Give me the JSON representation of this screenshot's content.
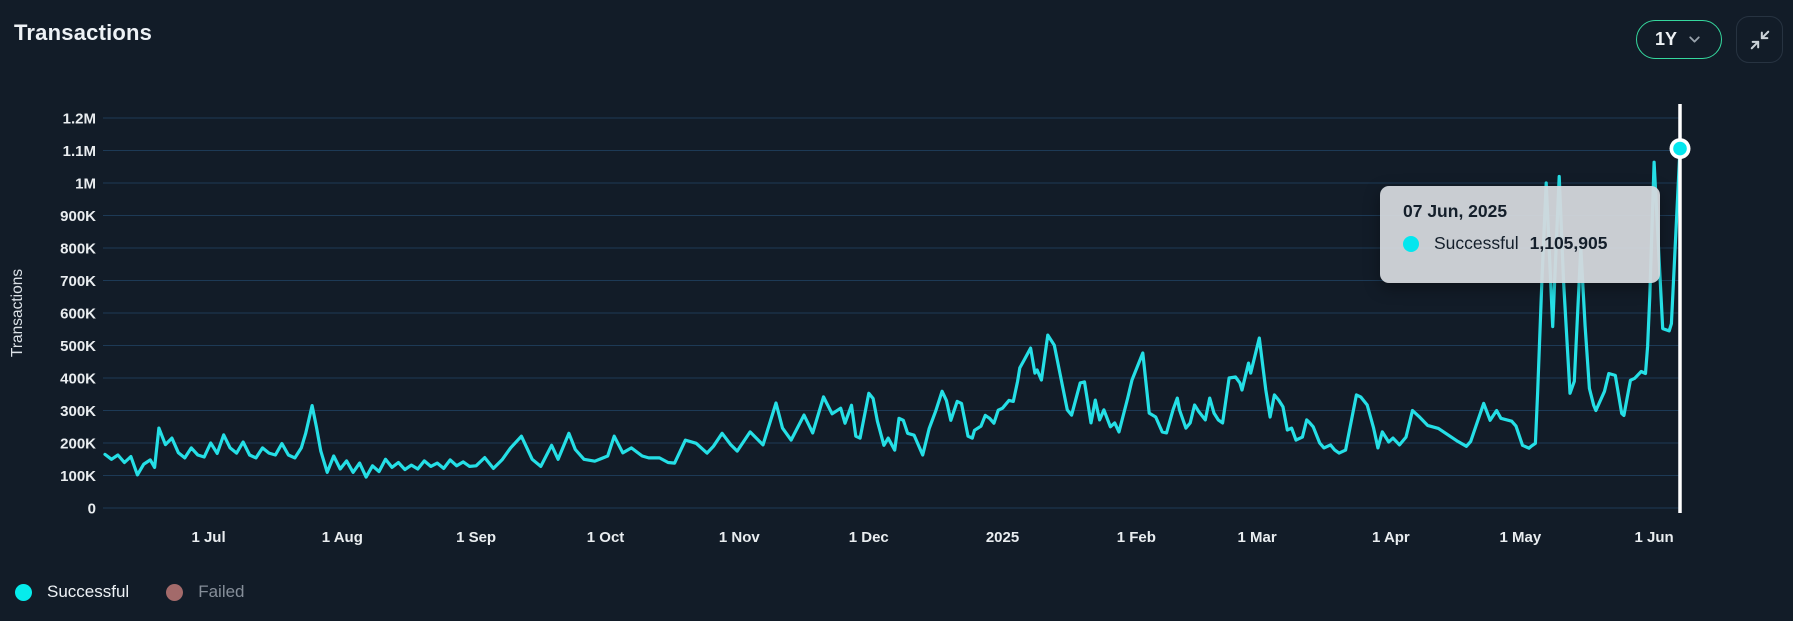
{
  "header": {
    "title": "Transactions",
    "range_selector": {
      "value": "1Y",
      "icon": "chevron-down-icon"
    },
    "collapse_button": {
      "icon": "collapse-arrows-icon"
    }
  },
  "tooltip": {
    "date": "07 Jun, 2025",
    "series": "Successful",
    "value": "1,105,905",
    "dot_color": "#04e6ee"
  },
  "legend": {
    "items": [
      {
        "label": "Successful",
        "color": "#06ecec",
        "active": true
      },
      {
        "label": "Failed",
        "color": "#a36a6a",
        "active": false
      }
    ]
  },
  "colors": {
    "background": "#121c28",
    "gridline": "#1d3a56",
    "axis_text": "#e9edf0",
    "line": "#25dfe6",
    "crosshair": "#ffffff",
    "accent_green": "#35d89e",
    "tooltip_bg": "#d5d9dd"
  },
  "chart_data": {
    "type": "line",
    "title": "Transactions",
    "ylabel": "Transactions",
    "xlabel": "",
    "grid": true,
    "legend_position": "bottom-left",
    "x_range": [
      "07 Jun 2024",
      "07 Jun 2025"
    ],
    "x_days_total": 365,
    "ylim": [
      0,
      1200000
    ],
    "y_ticks": [
      {
        "label": "0",
        "value": 0
      },
      {
        "label": "100K",
        "value": 100000
      },
      {
        "label": "200K",
        "value": 200000
      },
      {
        "label": "300K",
        "value": 300000
      },
      {
        "label": "400K",
        "value": 400000
      },
      {
        "label": "500K",
        "value": 500000
      },
      {
        "label": "600K",
        "value": 600000
      },
      {
        "label": "700K",
        "value": 700000
      },
      {
        "label": "800K",
        "value": 800000
      },
      {
        "label": "900K",
        "value": 900000
      },
      {
        "label": "1M",
        "value": 1000000
      },
      {
        "label": "1.1M",
        "value": 1100000
      },
      {
        "label": "1.2M",
        "value": 1200000
      }
    ],
    "x_ticks": [
      {
        "label": "1 Jul",
        "day": 24
      },
      {
        "label": "1 Aug",
        "day": 55
      },
      {
        "label": "1 Sep",
        "day": 86
      },
      {
        "label": "1 Oct",
        "day": 116
      },
      {
        "label": "1 Nov",
        "day": 147
      },
      {
        "label": "1 Dec",
        "day": 177
      },
      {
        "label": "2025",
        "day": 208
      },
      {
        "label": "1 Feb",
        "day": 239
      },
      {
        "label": "1 Mar",
        "day": 267
      },
      {
        "label": "1 Apr",
        "day": 298
      },
      {
        "label": "1 May",
        "day": 328
      },
      {
        "label": "1 Jun",
        "day": 359
      }
    ],
    "highlight": {
      "day": 365,
      "value": 1105905,
      "date": "07 Jun, 2025",
      "series": "Successful"
    },
    "series": [
      {
        "name": "Successful",
        "color": "#25dfe6",
        "visible": true,
        "points": [
          [
            0,
            165000
          ],
          [
            1.5,
            150000
          ],
          [
            3,
            163000
          ],
          [
            4.5,
            140000
          ],
          [
            6,
            158000
          ],
          [
            7.5,
            102000
          ],
          [
            9,
            135000
          ],
          [
            10.5,
            148000
          ],
          [
            11.5,
            125000
          ],
          [
            12.5,
            246000
          ],
          [
            14,
            195000
          ],
          [
            15.5,
            215000
          ],
          [
            17,
            170000
          ],
          [
            18.5,
            154000
          ],
          [
            20,
            185000
          ],
          [
            21.5,
            163000
          ],
          [
            23,
            157000
          ],
          [
            24.5,
            200000
          ],
          [
            26,
            168000
          ],
          [
            27.5,
            225000
          ],
          [
            29,
            185000
          ],
          [
            30.5,
            169000
          ],
          [
            32,
            203000
          ],
          [
            33.5,
            163000
          ],
          [
            35,
            154000
          ],
          [
            36.5,
            185000
          ],
          [
            38,
            169000
          ],
          [
            39.5,
            163000
          ],
          [
            41,
            198000
          ],
          [
            42.5,
            163000
          ],
          [
            44,
            154000
          ],
          [
            45.5,
            185000
          ],
          [
            46.5,
            230000
          ],
          [
            48,
            315000
          ],
          [
            49,
            250000
          ],
          [
            50,
            175000
          ],
          [
            51.5,
            110000
          ],
          [
            53,
            160000
          ],
          [
            54.5,
            120000
          ],
          [
            56,
            145000
          ],
          [
            57.5,
            110000
          ],
          [
            59,
            138000
          ],
          [
            60.5,
            95000
          ],
          [
            62,
            130000
          ],
          [
            63.5,
            112000
          ],
          [
            65,
            150000
          ],
          [
            66.5,
            125000
          ],
          [
            68,
            140000
          ],
          [
            69.5,
            118000
          ],
          [
            71,
            132000
          ],
          [
            72.5,
            120000
          ],
          [
            74,
            145000
          ],
          [
            75.5,
            128000
          ],
          [
            77,
            138000
          ],
          [
            78.5,
            122000
          ],
          [
            80,
            148000
          ],
          [
            81.5,
            130000
          ],
          [
            83,
            142000
          ],
          [
            84.5,
            128000
          ],
          [
            86,
            130000
          ],
          [
            88,
            155000
          ],
          [
            90,
            122000
          ],
          [
            92,
            148000
          ],
          [
            94,
            185000
          ],
          [
            96.5,
            221000
          ],
          [
            99,
            150000
          ],
          [
            101,
            128000
          ],
          [
            103.5,
            193000
          ],
          [
            105,
            150000
          ],
          [
            107.5,
            230000
          ],
          [
            109,
            180000
          ],
          [
            111,
            150000
          ],
          [
            113.5,
            144000
          ],
          [
            115,
            152000
          ],
          [
            116.5,
            160000
          ],
          [
            118,
            221000
          ],
          [
            120,
            170000
          ],
          [
            122,
            185000
          ],
          [
            124.5,
            160000
          ],
          [
            126,
            154000
          ],
          [
            128.5,
            154000
          ],
          [
            130.5,
            140000
          ],
          [
            132,
            138000
          ],
          [
            134.5,
            209000
          ],
          [
            137,
            199000
          ],
          [
            139.5,
            169000
          ],
          [
            141,
            190000
          ],
          [
            143,
            230000
          ],
          [
            145,
            195000
          ],
          [
            146.5,
            175000
          ],
          [
            149.5,
            234000
          ],
          [
            152.5,
            194000
          ],
          [
            155.5,
            323000
          ],
          [
            157,
            246000
          ],
          [
            159,
            209000
          ],
          [
            162,
            286000
          ],
          [
            164,
            231000
          ],
          [
            166.5,
            342000
          ],
          [
            168.5,
            290000
          ],
          [
            170.5,
            307000
          ],
          [
            171.5,
            261000
          ],
          [
            173,
            316000
          ],
          [
            174,
            221000
          ],
          [
            175,
            215000
          ],
          [
            177,
            353000
          ],
          [
            178,
            337000
          ],
          [
            179,
            267000
          ],
          [
            180.5,
            193000
          ],
          [
            181.5,
            215000
          ],
          [
            183,
            178000
          ],
          [
            184,
            276000
          ],
          [
            185,
            270000
          ],
          [
            186,
            230000
          ],
          [
            187.5,
            224000
          ],
          [
            189.5,
            163000
          ],
          [
            191,
            245000
          ],
          [
            192.5,
            298000
          ],
          [
            194,
            359000
          ],
          [
            195,
            331000
          ],
          [
            196,
            270000
          ],
          [
            197.5,
            328000
          ],
          [
            198.5,
            322000
          ],
          [
            200,
            221000
          ],
          [
            201,
            215000
          ],
          [
            201.5,
            239000
          ],
          [
            203,
            252000
          ],
          [
            204,
            285000
          ],
          [
            205,
            276000
          ],
          [
            206,
            261000
          ],
          [
            207,
            301000
          ],
          [
            208,
            307000
          ],
          [
            209.5,
            331000
          ],
          [
            210.5,
            328000
          ],
          [
            211.5,
            390000
          ],
          [
            212,
            431000
          ],
          [
            213,
            455000
          ],
          [
            214.5,
            492000
          ],
          [
            215.5,
            415000
          ],
          [
            216,
            425000
          ],
          [
            217,
            394000
          ],
          [
            218.5,
            532000
          ],
          [
            220,
            501000
          ],
          [
            223,
            302000
          ],
          [
            224,
            286000
          ],
          [
            226,
            385000
          ],
          [
            227,
            388000
          ],
          [
            228.5,
            262000
          ],
          [
            229.5,
            332000
          ],
          [
            230.5,
            271000
          ],
          [
            231.5,
            302000
          ],
          [
            233,
            250000
          ],
          [
            234,
            262000
          ],
          [
            235,
            234000
          ],
          [
            237,
            338000
          ],
          [
            238,
            394000
          ],
          [
            240.5,
            477000
          ],
          [
            242,
            292000
          ],
          [
            243.5,
            280000
          ],
          [
            245,
            234000
          ],
          [
            246,
            231000
          ],
          [
            247.5,
            302000
          ],
          [
            248.5,
            338000
          ],
          [
            249,
            302000
          ],
          [
            250.5,
            246000
          ],
          [
            251.5,
            262000
          ],
          [
            252.5,
            317000
          ],
          [
            253.5,
            296000
          ],
          [
            255,
            271000
          ],
          [
            256,
            338000
          ],
          [
            257,
            292000
          ],
          [
            258,
            271000
          ],
          [
            259,
            262000
          ],
          [
            260.5,
            400000
          ],
          [
            262,
            403000
          ],
          [
            263,
            385000
          ],
          [
            263.5,
            363000
          ],
          [
            265,
            446000
          ],
          [
            265.5,
            415000
          ],
          [
            267.5,
            523000
          ],
          [
            269,
            363000
          ],
          [
            270,
            280000
          ],
          [
            271,
            348000
          ],
          [
            272,
            332000
          ],
          [
            273,
            311000
          ],
          [
            274,
            240000
          ],
          [
            275,
            246000
          ],
          [
            276,
            209000
          ],
          [
            277.5,
            218000
          ],
          [
            278.5,
            271000
          ],
          [
            279,
            265000
          ],
          [
            280,
            250000
          ],
          [
            281.5,
            200000
          ],
          [
            282.5,
            185000
          ],
          [
            284,
            194000
          ],
          [
            285,
            178000
          ],
          [
            286,
            169000
          ],
          [
            287.5,
            178000
          ],
          [
            290,
            348000
          ],
          [
            291,
            342000
          ],
          [
            292.5,
            317000
          ],
          [
            294,
            246000
          ],
          [
            295,
            185000
          ],
          [
            296,
            234000
          ],
          [
            297.5,
            203000
          ],
          [
            298.5,
            215000
          ],
          [
            300,
            194000
          ],
          [
            301.5,
            218000
          ],
          [
            303,
            300000
          ],
          [
            304.5,
            282000
          ],
          [
            306.5,
            254000
          ],
          [
            309,
            245000
          ],
          [
            311,
            227000
          ],
          [
            313.5,
            205000
          ],
          [
            315.5,
            190000
          ],
          [
            316.5,
            205000
          ],
          [
            319.5,
            322000
          ],
          [
            321,
            270000
          ],
          [
            322.5,
            300000
          ],
          [
            323.5,
            276000
          ],
          [
            326,
            267000
          ],
          [
            327,
            252000
          ],
          [
            328.5,
            193000
          ],
          [
            330,
            184000
          ],
          [
            330.5,
            190000
          ],
          [
            331.5,
            199000
          ],
          [
            332,
            353000
          ],
          [
            333,
            699000
          ],
          [
            334,
            1000000
          ],
          [
            335.5,
            558000
          ],
          [
            337,
            1020000
          ],
          [
            338,
            700000
          ],
          [
            339.5,
            353000
          ],
          [
            340.5,
            390000
          ],
          [
            342,
            800000
          ],
          [
            343,
            560000
          ],
          [
            344,
            368000
          ],
          [
            345,
            316000
          ],
          [
            345.5,
            300000
          ],
          [
            347.5,
            359000
          ],
          [
            348.5,
            414000
          ],
          [
            350,
            408000
          ],
          [
            351.5,
            291000
          ],
          [
            352,
            285000
          ],
          [
            353.5,
            393000
          ],
          [
            354.5,
            399000
          ],
          [
            356,
            420000
          ],
          [
            357,
            414000
          ],
          [
            357.5,
            497000
          ],
          [
            358,
            653000
          ],
          [
            359,
            1064000
          ],
          [
            361,
            552000
          ],
          [
            362.5,
            545000
          ],
          [
            363,
            567000
          ],
          [
            365,
            1105905
          ]
        ]
      },
      {
        "name": "Failed",
        "color": "#a36a6a",
        "visible": false,
        "points": []
      }
    ]
  }
}
